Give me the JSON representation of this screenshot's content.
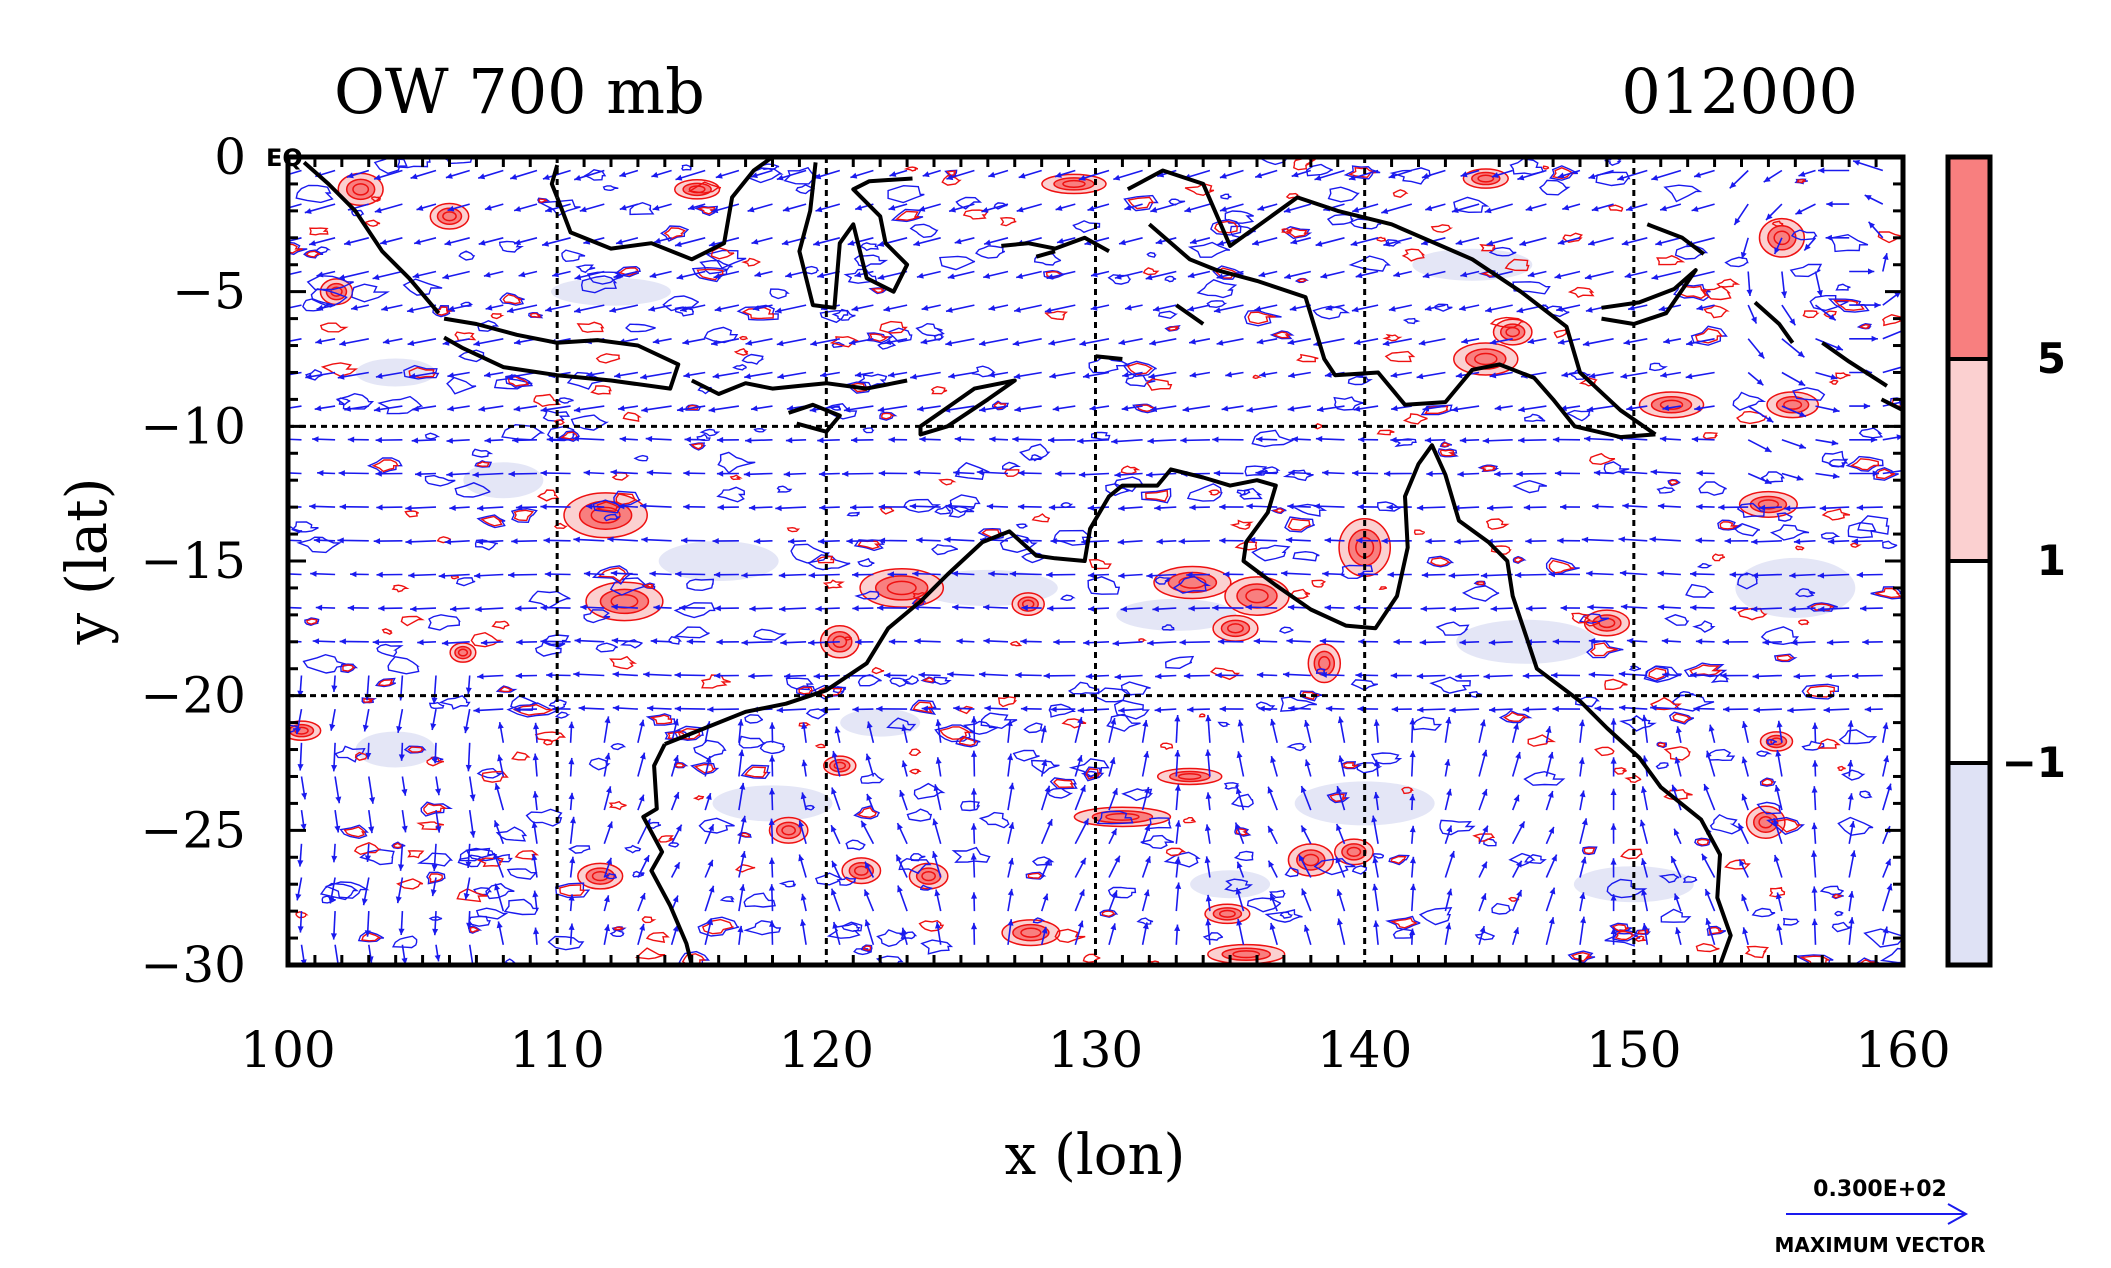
{
  "figure": {
    "title_left": "OW 700 mb",
    "title_right": "012000",
    "eq_label": "EQ",
    "xlabel": "x (lon)",
    "ylabel": "y (lat)",
    "x_ticks": [
      "100",
      "110",
      "120",
      "130",
      "140",
      "150",
      "160"
    ],
    "y_ticks": [
      "0",
      "−5",
      "−10",
      "−15",
      "−20",
      "−25",
      "−30"
    ],
    "xlim": [
      100,
      160
    ],
    "ylim": [
      -30,
      0
    ],
    "grid_lines": {
      "lon": [
        110,
        120,
        130,
        140,
        150
      ],
      "lat": [
        -10,
        -20
      ]
    },
    "colorbar": {
      "labels": [
        "5",
        "1",
        "−1"
      ],
      "levels": [
        -1,
        1,
        5
      ],
      "colors": [
        "#dfe2f5",
        "#ffffff",
        "#fbd0d0",
        "#f87f7f"
      ]
    },
    "vector_key": {
      "value": "0.300E+02",
      "label": "MAXIMUM VECTOR"
    },
    "colors": {
      "coastline": "#000000",
      "vectors": "#1a1aee",
      "positive_contour": "#ee1111",
      "negative_contour": "#1a1aee"
    }
  }
}
